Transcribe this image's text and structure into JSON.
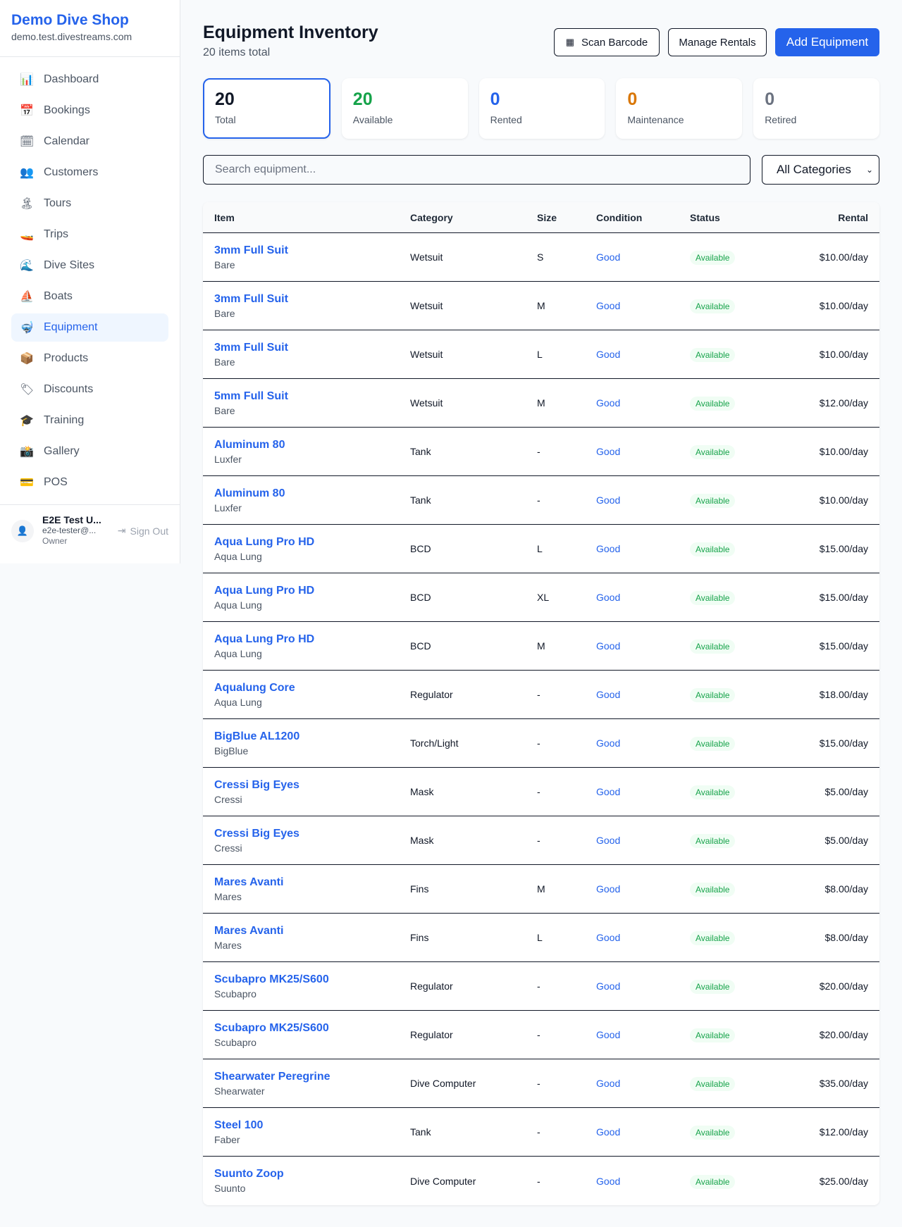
{
  "sidebar": {
    "shop_name": "Demo Dive Shop",
    "domain": "demo.test.divestreams.com",
    "items": [
      {
        "label": "Dashboard",
        "icon": "📊",
        "icon_name": "chart-icon"
      },
      {
        "label": "Bookings",
        "icon": "📅",
        "icon_name": "calendar-date-icon"
      },
      {
        "label": "Calendar",
        "icon": "🗓",
        "icon_name": "calendar-icon"
      },
      {
        "label": "Customers",
        "icon": "👥",
        "icon_name": "people-icon"
      },
      {
        "label": "Tours",
        "icon": "🏝",
        "icon_name": "island-icon"
      },
      {
        "label": "Trips",
        "icon": "🚤",
        "icon_name": "speedboat-icon"
      },
      {
        "label": "Dive Sites",
        "icon": "🌊",
        "icon_name": "wave-icon"
      },
      {
        "label": "Boats",
        "icon": "⛵",
        "icon_name": "sailboat-icon"
      },
      {
        "label": "Equipment",
        "icon": "🤿",
        "icon_name": "diving-mask-icon",
        "active": true
      },
      {
        "label": "Products",
        "icon": "📦",
        "icon_name": "package-icon"
      },
      {
        "label": "Discounts",
        "icon": "🏷",
        "icon_name": "tag-icon"
      },
      {
        "label": "Training",
        "icon": "🎓",
        "icon_name": "graduation-cap-icon"
      },
      {
        "label": "Gallery",
        "icon": "📸",
        "icon_name": "camera-icon"
      },
      {
        "label": "POS",
        "icon": "💳",
        "icon_name": "credit-card-icon"
      }
    ],
    "user": {
      "name": "E2E Test U...",
      "email": "e2e-tester@...",
      "role": "Owner",
      "sign_out": "Sign Out"
    }
  },
  "header": {
    "title": "Equipment Inventory",
    "subtitle": "20 items total",
    "scan_barcode": "Scan Barcode",
    "manage_rentals": "Manage Rentals",
    "add_equipment": "Add Equipment"
  },
  "stats": [
    {
      "value": "20",
      "label": "Total",
      "color": "#111827"
    },
    {
      "value": "20",
      "label": "Available",
      "color": "#16a34a"
    },
    {
      "value": "0",
      "label": "Rented",
      "color": "#2563eb"
    },
    {
      "value": "0",
      "label": "Maintenance",
      "color": "#d97706"
    },
    {
      "value": "0",
      "label": "Retired",
      "color": "#6b7280"
    }
  ],
  "filters": {
    "search_placeholder": "Search equipment...",
    "category": "All Categories"
  },
  "table": {
    "columns": [
      "Item",
      "Category",
      "Size",
      "Condition",
      "Status",
      "Rental"
    ],
    "rows": [
      [
        "3mm Full Suit",
        "Bare",
        "Wetsuit",
        "S",
        "Good",
        "Available",
        "$10.00/day"
      ],
      [
        "3mm Full Suit",
        "Bare",
        "Wetsuit",
        "M",
        "Good",
        "Available",
        "$10.00/day"
      ],
      [
        "3mm Full Suit",
        "Bare",
        "Wetsuit",
        "L",
        "Good",
        "Available",
        "$10.00/day"
      ],
      [
        "5mm Full Suit",
        "Bare",
        "Wetsuit",
        "M",
        "Good",
        "Available",
        "$12.00/day"
      ],
      [
        "Aluminum 80",
        "Luxfer",
        "Tank",
        "-",
        "Good",
        "Available",
        "$10.00/day"
      ],
      [
        "Aluminum 80",
        "Luxfer",
        "Tank",
        "-",
        "Good",
        "Available",
        "$10.00/day"
      ],
      [
        "Aqua Lung Pro HD",
        "Aqua Lung",
        "BCD",
        "L",
        "Good",
        "Available",
        "$15.00/day"
      ],
      [
        "Aqua Lung Pro HD",
        "Aqua Lung",
        "BCD",
        "XL",
        "Good",
        "Available",
        "$15.00/day"
      ],
      [
        "Aqua Lung Pro HD",
        "Aqua Lung",
        "BCD",
        "M",
        "Good",
        "Available",
        "$15.00/day"
      ],
      [
        "Aqualung Core",
        "Aqua Lung",
        "Regulator",
        "-",
        "Good",
        "Available",
        "$18.00/day"
      ],
      [
        "BigBlue AL1200",
        "BigBlue",
        "Torch/Light",
        "-",
        "Good",
        "Available",
        "$15.00/day"
      ],
      [
        "Cressi Big Eyes",
        "Cressi",
        "Mask",
        "-",
        "Good",
        "Available",
        "$5.00/day"
      ],
      [
        "Cressi Big Eyes",
        "Cressi",
        "Mask",
        "-",
        "Good",
        "Available",
        "$5.00/day"
      ],
      [
        "Mares Avanti",
        "Mares",
        "Fins",
        "M",
        "Good",
        "Available",
        "$8.00/day"
      ],
      [
        "Mares Avanti",
        "Mares",
        "Fins",
        "L",
        "Good",
        "Available",
        "$8.00/day"
      ],
      [
        "Scubapro MK25/S600",
        "Scubapro",
        "Regulator",
        "-",
        "Good",
        "Available",
        "$20.00/day"
      ],
      [
        "Scubapro MK25/S600",
        "Scubapro",
        "Regulator",
        "-",
        "Good",
        "Available",
        "$20.00/day"
      ],
      [
        "Shearwater Peregrine",
        "Shearwater",
        "Dive Computer",
        "-",
        "Good",
        "Available",
        "$35.00/day"
      ],
      [
        "Steel 100",
        "Faber",
        "Tank",
        "-",
        "Good",
        "Available",
        "$12.00/day"
      ],
      [
        "Suunto Zoop",
        "Suunto",
        "Dive Computer",
        "-",
        "Good",
        "Available",
        "$25.00/day"
      ]
    ]
  }
}
